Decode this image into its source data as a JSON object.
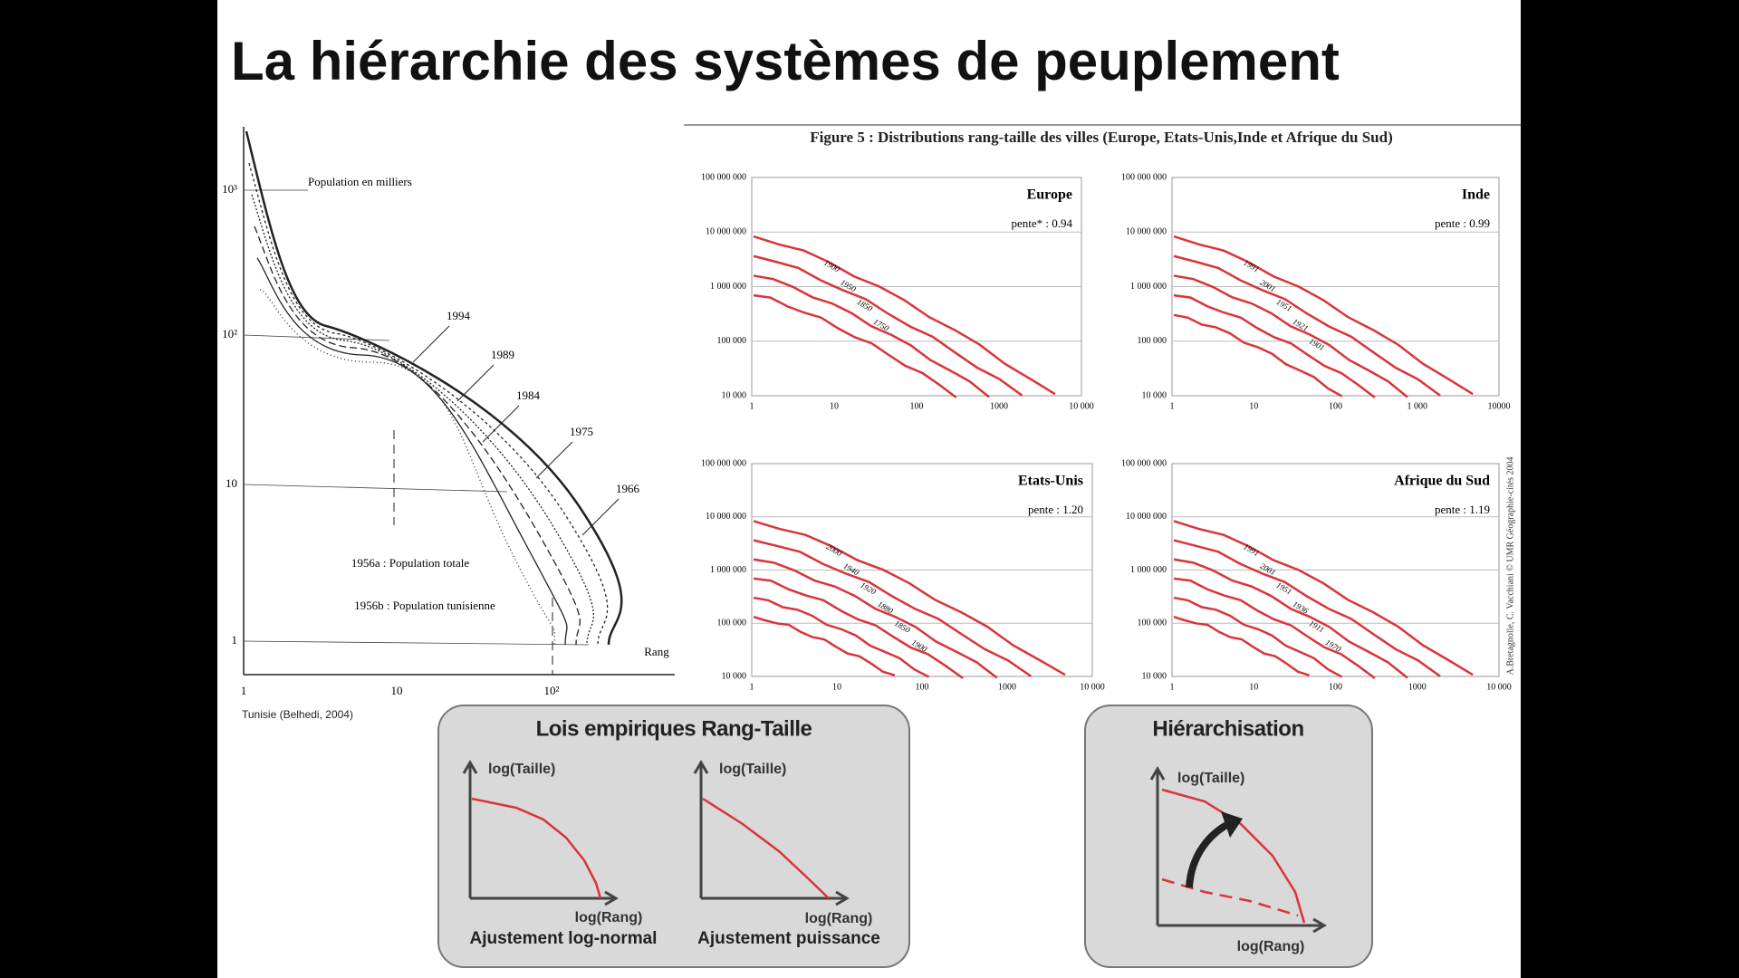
{
  "title": "La hiérarchie des systèmes de peuplement",
  "tunisia": {
    "y_ticks": [
      "10³",
      "10²",
      "10",
      "1"
    ],
    "x_ticks": [
      "1",
      "10",
      "10²"
    ],
    "x_label": "Rang",
    "y_label": "Population en milliers",
    "years": [
      "1994",
      "1989",
      "1984",
      "1975",
      "1966"
    ],
    "notes": [
      "1956a : Population totale",
      "1956b : Population tunisienne"
    ],
    "source": "Tunisie (Belhedi, 2004)"
  },
  "figure5": {
    "title": "Figure 5 : Distributions rang-taille des villes (Europe, Etats-Unis,Inde et Afrique du Sud)",
    "credit": "A.Bretagnolle, C. Vacchiani © UMR Géographie-cités 2004",
    "panels": [
      {
        "name": "Europe",
        "slope": "pente* : 0.94",
        "y_ticks": [
          "100 000 000",
          "10 000 000",
          "1 000 000",
          "100 000",
          "10 000"
        ],
        "x_ticks": [
          "1",
          "10",
          "100",
          "1000",
          "10 000"
        ],
        "years": [
          "1900",
          "1950",
          "1850",
          "1750"
        ]
      },
      {
        "name": "Inde",
        "slope": "pente : 0.99",
        "y_ticks": [
          "100 000 000",
          "10 000 000",
          "1 000 000",
          "100 000",
          "10 000"
        ],
        "x_ticks": [
          "1",
          "10",
          "100",
          "1 000",
          "10000"
        ],
        "years": [
          "1991",
          "2001",
          "1951",
          "1921",
          "1901"
        ]
      },
      {
        "name": "Etats-Unis",
        "slope": "pente : 1.20",
        "y_ticks": [
          "100 000 000",
          "10 000 000",
          "1 000 000",
          "100 000",
          "10 000"
        ],
        "x_ticks": [
          "1",
          "10",
          "100",
          "1000",
          "10 000"
        ],
        "years": [
          "2000",
          "1940",
          "1920",
          "1880",
          "1850",
          "1900"
        ]
      },
      {
        "name": "Afrique du Sud",
        "slope": "pente : 1.19",
        "y_ticks": [
          "100 000 000",
          "10 000 000",
          "1 000 000",
          "100 000",
          "10 000"
        ],
        "x_ticks": [
          "1",
          "10",
          "100",
          "1000",
          "10 000"
        ],
        "years": [
          "1991",
          "2001",
          "1951",
          "1936",
          "1911",
          "1970"
        ]
      }
    ]
  },
  "laws": {
    "title": "Lois empiriques Rang-Taille",
    "panels": [
      {
        "y_label": "log(Taille)",
        "x_label": "log(Rang)",
        "caption": "Ajustement log-normal"
      },
      {
        "y_label": "log(Taille)",
        "x_label": "log(Rang)",
        "caption": "Ajustement puissance"
      }
    ]
  },
  "hierarchy": {
    "title": "Hiérarchisation",
    "y_label": "log(Taille)",
    "x_label": "log(Rang)"
  }
}
